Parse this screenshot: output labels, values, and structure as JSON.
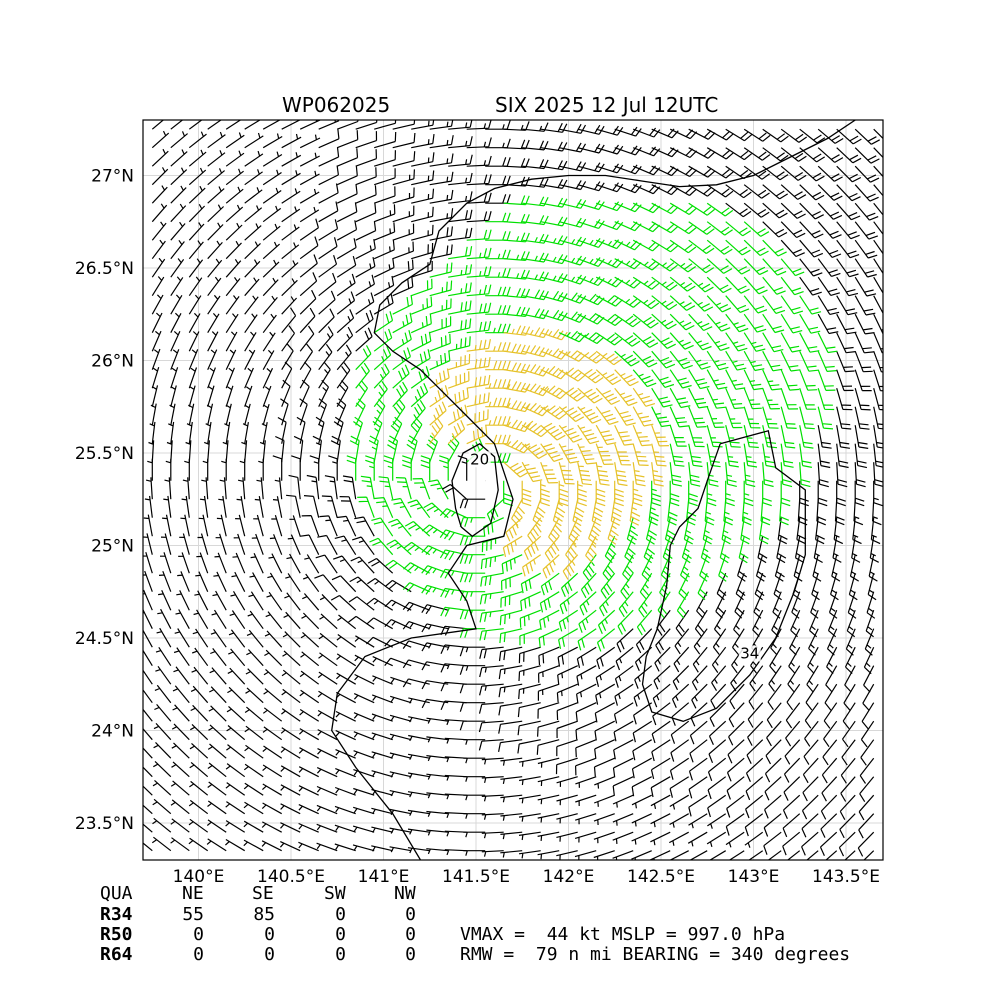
{
  "chart_data": {
    "type": "wind-barb-map",
    "title_left": "WP062025",
    "title_right": "SIX 2025 12 Jul 12UTC",
    "xlim": [
      139.7,
      143.7
    ],
    "ylim": [
      23.3,
      27.3
    ],
    "x_ticks": [
      {
        "value": 140.0,
        "label": "140°E"
      },
      {
        "value": 140.5,
        "label": "140.5°E"
      },
      {
        "value": 141.0,
        "label": "141°E"
      },
      {
        "value": 141.5,
        "label": "141.5°E"
      },
      {
        "value": 142.0,
        "label": "142°E"
      },
      {
        "value": 142.5,
        "label": "142.5°E"
      },
      {
        "value": 143.0,
        "label": "143°E"
      },
      {
        "value": 143.5,
        "label": "143.5°E"
      }
    ],
    "y_ticks": [
      {
        "value": 23.5,
        "label": "23.5°N"
      },
      {
        "value": 24.0,
        "label": "24°N"
      },
      {
        "value": 24.5,
        "label": "24.5°N"
      },
      {
        "value": 25.0,
        "label": "25°N"
      },
      {
        "value": 25.5,
        "label": "25.5°N"
      },
      {
        "value": 26.0,
        "label": "26°N"
      },
      {
        "value": 26.5,
        "label": "26.5°N"
      },
      {
        "value": 27.0,
        "label": "27°N"
      }
    ],
    "grid": true,
    "center": {
      "lon": 141.55,
      "lat": 25.35
    },
    "wind_color_bins": [
      {
        "min_kt": 0,
        "max_kt": 20,
        "color": "#000000"
      },
      {
        "min_kt": 20,
        "max_kt": 34,
        "color": "#00e000"
      },
      {
        "min_kt": 34,
        "max_kt": 50,
        "color": "#e6c229"
      }
    ],
    "contours": [
      {
        "level": "20",
        "label_lon": 141.52,
        "label_lat": 25.45,
        "color": "#000000",
        "path": [
          [
            141.42,
            25.1
          ],
          [
            141.48,
            25.05
          ],
          [
            141.58,
            25.12
          ],
          [
            141.62,
            25.3
          ],
          [
            141.6,
            25.48
          ],
          [
            141.52,
            25.55
          ],
          [
            141.43,
            25.5
          ],
          [
            141.37,
            25.35
          ],
          [
            141.39,
            25.2
          ],
          [
            141.42,
            25.1
          ]
        ]
      },
      {
        "level": "34",
        "label_lon": 142.98,
        "label_lat": 24.4,
        "color": "#000000",
        "path": [
          [
            142.82,
            25.55
          ],
          [
            143.08,
            25.62
          ],
          [
            143.12,
            25.42
          ],
          [
            143.28,
            25.3
          ],
          [
            143.28,
            24.95
          ],
          [
            143.22,
            24.75
          ],
          [
            143.12,
            24.5
          ],
          [
            142.98,
            24.3
          ],
          [
            142.8,
            24.12
          ],
          [
            142.62,
            24.05
          ],
          [
            142.45,
            24.1
          ],
          [
            142.4,
            24.25
          ],
          [
            142.42,
            24.4
          ],
          [
            142.48,
            24.55
          ],
          [
            142.53,
            24.78
          ],
          [
            142.55,
            25.0
          ],
          [
            142.6,
            25.1
          ],
          [
            142.7,
            25.2
          ],
          [
            142.75,
            25.35
          ],
          [
            142.82,
            25.55
          ]
        ]
      },
      {
        "level": "",
        "color": "#000000",
        "path": [
          [
            141.2,
            23.3
          ],
          [
            141.05,
            23.55
          ],
          [
            140.85,
            23.8
          ],
          [
            140.72,
            24.0
          ],
          [
            140.75,
            24.2
          ],
          [
            140.9,
            24.4
          ],
          [
            141.15,
            24.5
          ],
          [
            141.5,
            24.55
          ],
          [
            141.45,
            24.7
          ],
          [
            141.35,
            24.85
          ],
          [
            141.45,
            25.0
          ],
          [
            141.65,
            25.05
          ],
          [
            141.7,
            25.25
          ],
          [
            141.6,
            25.55
          ],
          [
            141.45,
            25.7
          ],
          [
            141.3,
            25.85
          ],
          [
            141.2,
            25.95
          ],
          [
            141.05,
            26.05
          ],
          [
            140.95,
            26.15
          ],
          [
            140.98,
            26.3
          ],
          [
            141.1,
            26.42
          ],
          [
            141.25,
            26.52
          ],
          [
            141.3,
            26.7
          ],
          [
            141.45,
            26.85
          ],
          [
            141.6,
            26.93
          ],
          [
            141.8,
            26.98
          ],
          [
            142.0,
            27.0
          ],
          [
            142.2,
            27.0
          ],
          [
            142.4,
            26.97
          ],
          [
            142.6,
            26.94
          ],
          [
            142.8,
            26.95
          ],
          [
            143.0,
            27.0
          ],
          [
            143.2,
            27.1
          ],
          [
            143.4,
            27.2
          ],
          [
            143.55,
            27.3
          ]
        ]
      }
    ],
    "table": {
      "header": [
        "QUA",
        "NE",
        "SE",
        "SW",
        "NW"
      ],
      "rows": [
        {
          "label": "R34",
          "values": [
            "55",
            "85",
            "0",
            "0"
          ]
        },
        {
          "label": "R50",
          "values": [
            "0",
            "0",
            "0",
            "0"
          ]
        },
        {
          "label": "R64",
          "values": [
            "0",
            "0",
            "0",
            "0"
          ]
        }
      ],
      "summary_line1": "VMAX =  44 kt MSLP = 997.0 hPa",
      "summary_line2": "RMW =  79 n mi BEARING = 340 degrees"
    }
  }
}
